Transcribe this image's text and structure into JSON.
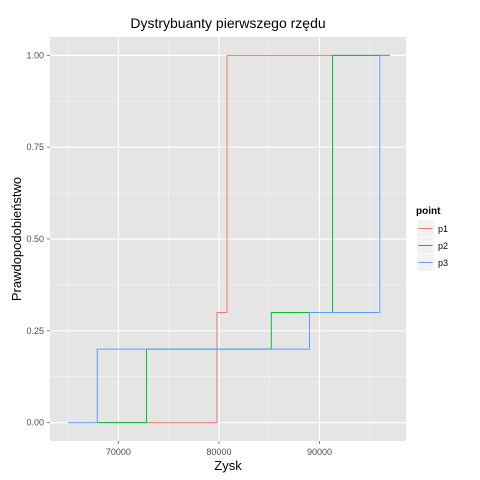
{
  "chart_data": {
    "type": "line",
    "step": true,
    "title": "Dystrybuanty pierwszego rzędu",
    "xlabel": "Zysk",
    "ylabel": "Prawdopodobieństwo",
    "xlim": [
      63200,
      98600
    ],
    "ylim": [
      -0.05,
      1.05
    ],
    "x_ticks": [
      70000,
      80000,
      90000
    ],
    "x_tick_labels": [
      "70000",
      "80000",
      "90000"
    ],
    "y_ticks": [
      0.0,
      0.25,
      0.5,
      0.75,
      1.0
    ],
    "y_tick_labels": [
      "0.00",
      "0.25",
      "0.50",
      "0.75",
      "1.00"
    ],
    "grid": true,
    "legend": {
      "title": "point",
      "position": "right"
    },
    "series": [
      {
        "name": "p1",
        "color": "#F8766D",
        "x": [
          67900,
          79800,
          80800,
          97000
        ],
        "y": [
          0.0,
          0.3,
          1.0,
          1.0
        ]
      },
      {
        "name": "p2",
        "color": "#00BA38",
        "x": [
          67900,
          72800,
          85200,
          91300,
          97000
        ],
        "y": [
          0.0,
          0.2,
          0.3,
          1.0,
          1.0
        ]
      },
      {
        "name": "p3",
        "color": "#619CFF",
        "x": [
          65000,
          67900,
          89000,
          96000,
          97000
        ],
        "y": [
          0.0,
          0.2,
          0.3,
          1.0,
          1.0
        ]
      }
    ]
  }
}
